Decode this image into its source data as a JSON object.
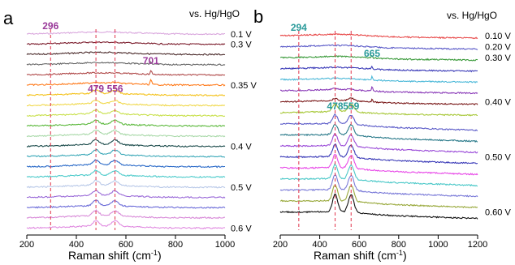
{
  "chart_data": [
    {
      "type": "line",
      "panel_label": "a",
      "reference_label": "vs. Hg/HgO",
      "xlabel_text": "Raman shift (cm",
      "xlabel_sup": "-1",
      "xlabel_close": ")",
      "xlim": [
        200,
        1000
      ],
      "x_ticks": [
        "200",
        "400",
        "600",
        "800",
        "1000"
      ],
      "potential_labels": [
        {
          "text": "0.1 V",
          "series_index": 0
        },
        {
          "text": "0.3 V",
          "series_index": 1
        },
        {
          "text": "0.35 V",
          "series_index": 5
        },
        {
          "text": "0.4 V",
          "series_index": 11
        },
        {
          "text": "0.5 V",
          "series_index": 15
        },
        {
          "text": "0.6 V",
          "series_index": 19
        }
      ],
      "peak_labels": [
        {
          "text": "296",
          "x": 296
        },
        {
          "text": "701",
          "x": 701
        },
        {
          "text": "479",
          "x": 479
        },
        {
          "text": "556",
          "x": 556
        }
      ],
      "dashed_markers": [
        296,
        479,
        556
      ],
      "peaks": {
        "p1": 479,
        "p2": 556,
        "p3": 701
      },
      "series": [
        {
          "color": "#d9a6dd",
          "peak_479": 0,
          "peak_556": 0,
          "peak_701": 0
        },
        {
          "color": "#7a1a2a",
          "peak_479": 0,
          "peak_556": 0,
          "peak_701": 0
        },
        {
          "color": "#4a2a2a",
          "peak_479": 0,
          "peak_556": 0,
          "peak_701": 0
        },
        {
          "color": "#666666",
          "peak_479": 0,
          "peak_556": 0,
          "peak_701": 0.2
        },
        {
          "color": "#b04a4a",
          "peak_479": 0,
          "peak_556": 0,
          "peak_701": 0.4
        },
        {
          "color": "#ff7a1a",
          "peak_479": 0.1,
          "peak_556": 0.1,
          "peak_701": 0.5
        },
        {
          "color": "#f4c21a",
          "peak_479": 0.3,
          "peak_556": 0.3,
          "peak_701": 0
        },
        {
          "color": "#f0d84a",
          "peak_479": 0.3,
          "peak_556": 0.3,
          "peak_701": 0
        },
        {
          "color": "#c8e04a",
          "peak_479": 0.35,
          "peak_556": 0.35,
          "peak_701": 0
        },
        {
          "color": "#5ab83a",
          "peak_479": 0.35,
          "peak_556": 0.35,
          "peak_701": 0
        },
        {
          "color": "#a7d8a7",
          "peak_479": 0.4,
          "peak_556": 0.4,
          "peak_701": 0
        },
        {
          "color": "#1a4a4a",
          "peak_479": 0.45,
          "peak_556": 0.45,
          "peak_701": 0
        },
        {
          "color": "#3aa8b8",
          "peak_479": 0.45,
          "peak_556": 0.45,
          "peak_701": 0
        },
        {
          "color": "#2a6ac8",
          "peak_479": 0.45,
          "peak_556": 0.45,
          "peak_701": 0
        },
        {
          "color": "#4acaca",
          "peak_479": 0.45,
          "peak_556": 0.45,
          "peak_701": 0
        },
        {
          "color": "#b8c8e8",
          "peak_479": 0.45,
          "peak_556": 0.45,
          "peak_701": 0
        },
        {
          "color": "#9a6ad8",
          "peak_479": 0.45,
          "peak_556": 0.45,
          "peak_701": 0
        },
        {
          "color": "#6a6ad8",
          "peak_479": 0.5,
          "peak_556": 0.5,
          "peak_701": 0
        },
        {
          "color": "#d88ad8",
          "peak_479": 0.5,
          "peak_556": 0.5,
          "peak_701": 0
        },
        {
          "color": "#e08ae0",
          "peak_479": 0.5,
          "peak_556": 0.5,
          "peak_701": 0
        }
      ]
    },
    {
      "type": "line",
      "panel_label": "b",
      "reference_label": "vs. Hg/HgO",
      "xlabel_text": "Raman shift (cm",
      "xlabel_sup": "-1",
      "xlabel_close": ")",
      "xlim": [
        200,
        1200
      ],
      "x_ticks": [
        "200",
        "400",
        "600",
        "800",
        "1000",
        "1200"
      ],
      "potential_labels": [
        {
          "text": "0.10 V",
          "series_index": 0
        },
        {
          "text": "0.20 V",
          "series_index": 1
        },
        {
          "text": "0.30 V",
          "series_index": 2
        },
        {
          "text": "0.40 V",
          "series_index": 6
        },
        {
          "text": "0.50 V",
          "series_index": 11
        },
        {
          "text": "0.60 V",
          "series_index": 16
        }
      ],
      "peak_labels": [
        {
          "text": "294",
          "x": 294
        },
        {
          "text": "665",
          "x": 665
        },
        {
          "text": "478",
          "x": 478
        },
        {
          "text": "559",
          "x": 559
        }
      ],
      "dashed_markers": [
        294,
        478,
        559
      ],
      "peaks": {
        "p1": 478,
        "p2": 559,
        "p3": 665
      },
      "series": [
        {
          "color": "#e84a4a",
          "peak_479": 0,
          "peak_556": 0,
          "peak_701": 0
        },
        {
          "color": "#5a5ac8",
          "peak_479": 0,
          "peak_556": 0,
          "peak_701": 0
        },
        {
          "color": "#3a9a3a",
          "peak_479": 0,
          "peak_556": 0,
          "peak_701": 0.2
        },
        {
          "color": "#3a3ab8",
          "peak_479": 0,
          "peak_556": 0,
          "peak_701": 0.3
        },
        {
          "color": "#4ab8d8",
          "peak_479": 0,
          "peak_556": 0,
          "peak_701": 0.4
        },
        {
          "color": "#8a3ab8",
          "peak_479": 0.1,
          "peak_556": 0.1,
          "peak_701": 0.5
        },
        {
          "color": "#7a1a1a",
          "peak_479": 0.2,
          "peak_556": 0.3,
          "peak_701": 0.3
        },
        {
          "color": "#a8c83a",
          "peak_479": 0.9,
          "peak_556": 0.9,
          "peak_701": 0
        },
        {
          "color": "#5a5ac8",
          "peak_479": 1.0,
          "peak_556": 1.0,
          "peak_701": 0
        },
        {
          "color": "#2a7a8a",
          "peak_479": 1.2,
          "peak_556": 1.2,
          "peak_701": 0
        },
        {
          "color": "#9a4ad8",
          "peak_479": 1.3,
          "peak_556": 1.3,
          "peak_701": 0
        },
        {
          "color": "#3a3ab8",
          "peak_479": 1.4,
          "peak_556": 1.4,
          "peak_701": 0
        },
        {
          "color": "#e84ae8",
          "peak_479": 1.5,
          "peak_556": 1.5,
          "peak_701": 0
        },
        {
          "color": "#4ac8c8",
          "peak_479": 1.6,
          "peak_556": 1.6,
          "peak_701": 0
        },
        {
          "color": "#7a7ad8",
          "peak_479": 1.7,
          "peak_556": 1.7,
          "peak_701": 0
        },
        {
          "color": "#98a83a",
          "peak_479": 1.8,
          "peak_556": 1.8,
          "peak_701": 0
        },
        {
          "color": "#111111",
          "peak_479": 2.0,
          "peak_556": 2.0,
          "peak_701": 0
        }
      ]
    }
  ],
  "colors": {
    "annotation_a": "#9a3a9a",
    "annotation_b": "#2a9a9a",
    "dashed": "#e0334a"
  }
}
